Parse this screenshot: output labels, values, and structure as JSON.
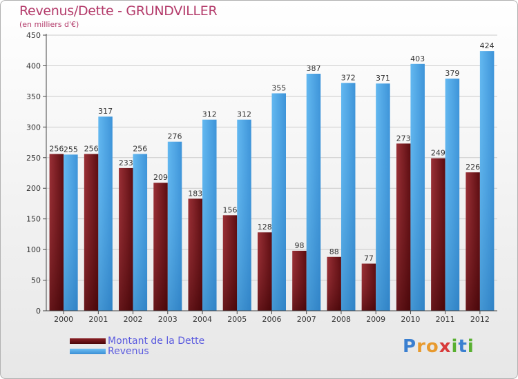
{
  "title": "Revenus/Dette - GRUNDVILLER",
  "subtitle": "(en milliers d'€)",
  "logo": {
    "letters": [
      {
        "ch": "P",
        "color": "#3a7fd0"
      },
      {
        "ch": "r",
        "color": "#e89a2e"
      },
      {
        "ch": "o",
        "color": "#e89a2e"
      },
      {
        "ch": "x",
        "color": "#d83a3a"
      },
      {
        "ch": "i",
        "color": "#58b030"
      },
      {
        "ch": "t",
        "color": "#3a7fd0"
      },
      {
        "ch": "i",
        "color": "#58b030"
      }
    ]
  },
  "colors": {
    "dette": "#7a1a1e",
    "dette_dark": "#4a0608",
    "revenus": "#56aeea",
    "revenus_dark": "#2f84c8",
    "axis": "#444444",
    "grid": "#cccccc"
  },
  "chart_data": {
    "type": "bar",
    "title": "Revenus/Dette - GRUNDVILLER",
    "ylabel": "(en milliers d'€)",
    "xlabel": "",
    "ylim": [
      0,
      450
    ],
    "yticks": [
      0,
      50,
      100,
      150,
      200,
      250,
      300,
      350,
      400,
      450
    ],
    "grid": true,
    "legend": "bottom-left",
    "categories": [
      "2000",
      "2001",
      "2002",
      "2003",
      "2004",
      "2005",
      "2006",
      "2007",
      "2008",
      "2009",
      "2010",
      "2011",
      "2012"
    ],
    "series": [
      {
        "name": "Montant de la Dette",
        "values": [
          256,
          256,
          233,
          209,
          183,
          156,
          128,
          98,
          88,
          77,
          273,
          249,
          226
        ]
      },
      {
        "name": "Revenus",
        "values": [
          255,
          317,
          256,
          276,
          312,
          312,
          355,
          387,
          372,
          371,
          403,
          379,
          424
        ]
      }
    ]
  }
}
